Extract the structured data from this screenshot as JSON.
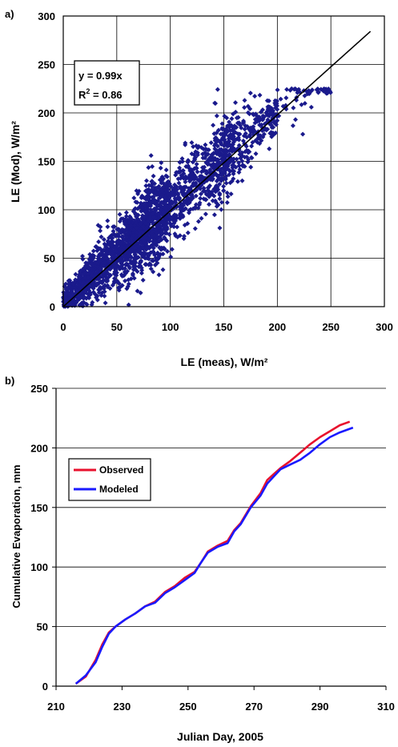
{
  "chart_data": [
    {
      "panel_label": "a)",
      "type": "scatter",
      "xlabel": "LE (meas), W/m²",
      "ylabel": "LE (Mod), W/m²",
      "xlim": [
        0,
        300
      ],
      "ylim": [
        0,
        300
      ],
      "xticks": [
        0,
        50,
        100,
        150,
        200,
        250,
        300
      ],
      "yticks": [
        0,
        50,
        100,
        150,
        200,
        250,
        300
      ],
      "grid": true,
      "marker_color": "#1a1a8c",
      "fit_line": {
        "slope": 0.99,
        "x_range": [
          0,
          287
        ],
        "color": "#000000"
      },
      "annotation": {
        "line1": "y = 0.99x",
        "line2_prefix": "R",
        "line2_sup": "2",
        "line2_suffix": " = 0.86"
      },
      "series": [
        {
          "model": "y = 0.99x with scatter",
          "n_points": 2500,
          "x_range": [
            0,
            250
          ],
          "spread": "std ~18 W/m² around fit, wider at mid values"
        }
      ]
    },
    {
      "panel_label": "b)",
      "type": "line",
      "xlabel": "Julian Day, 2005",
      "ylabel": "Cumulative Evaporation, mm",
      "xlim": [
        210,
        310
      ],
      "ylim": [
        0,
        250
      ],
      "xticks": [
        210,
        230,
        250,
        270,
        290,
        310
      ],
      "yticks": [
        0,
        50,
        100,
        150,
        200,
        250
      ],
      "grid": "horizontal",
      "legend": {
        "placement": "upper-left"
      },
      "series": [
        {
          "name": "Observed",
          "color": "#e8112d",
          "x": [
            216,
            219,
            222,
            224,
            226,
            228,
            231,
            234,
            237,
            240,
            243,
            246,
            249,
            252,
            254,
            256,
            259,
            262,
            264,
            266,
            269,
            272,
            274,
            276,
            278,
            281,
            284,
            287,
            290,
            293,
            296,
            299
          ],
          "y": [
            2,
            8,
            22,
            35,
            45,
            50,
            56,
            61,
            67,
            71,
            79,
            84,
            91,
            96,
            104,
            113,
            118,
            122,
            131,
            137,
            151,
            162,
            173,
            178,
            183,
            189,
            196,
            203,
            209,
            214,
            219,
            222
          ]
        },
        {
          "name": "Modeled",
          "color": "#1a1aff",
          "x": [
            216,
            219,
            222,
            224,
            226,
            228,
            231,
            234,
            237,
            240,
            243,
            246,
            249,
            252,
            254,
            256,
            259,
            262,
            264,
            266,
            269,
            272,
            274,
            276,
            278,
            281,
            284,
            287,
            290,
            293,
            296,
            300
          ],
          "y": [
            2,
            9,
            20,
            33,
            44,
            50,
            56,
            61,
            67,
            70,
            78,
            83,
            89,
            95,
            104,
            112,
            117,
            120,
            130,
            136,
            150,
            160,
            170,
            176,
            182,
            186,
            190,
            196,
            203,
            209,
            213,
            217
          ]
        }
      ]
    }
  ]
}
